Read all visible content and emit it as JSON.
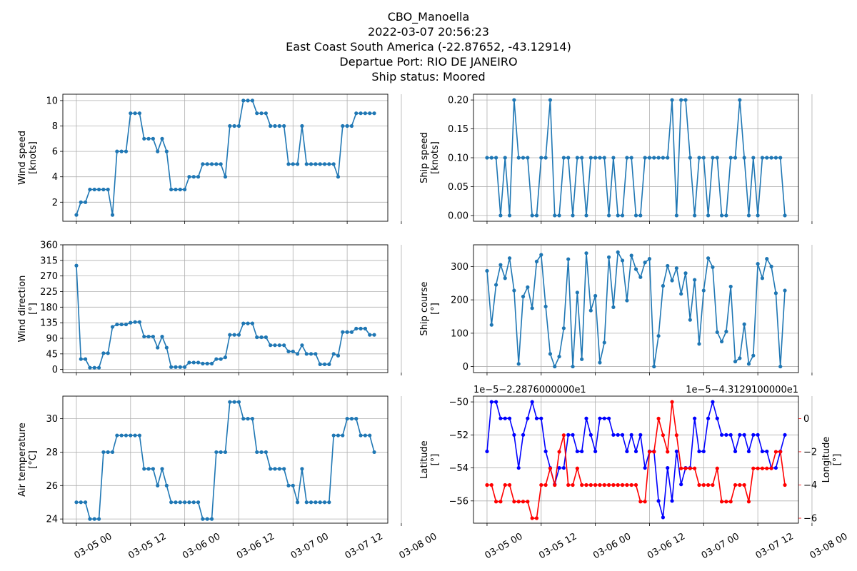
{
  "title": {
    "lines": [
      "CBO_Manoella",
      "2022-03-07 20:56:23",
      "East Coast South America (-22.87652, -43.12914)",
      "Departue Port: RIO DE JANEIRO",
      "Ship status: Moored"
    ]
  },
  "colors": {
    "series": "#1f77b4",
    "latitude": "#0000ff",
    "longitude": "#ff0000",
    "grid": "#b0b0b0"
  },
  "x_tick_labels": [
    "03-05 00",
    "03-05 12",
    "03-06 00",
    "03-06 12",
    "03-07 00",
    "03-07 12",
    "03-08 00"
  ],
  "chart_data": [
    {
      "type": "line",
      "ylabel": [
        "Wind speed",
        "[knots]"
      ],
      "grid": true,
      "xlim_hours": [
        -3,
        69
      ],
      "ylim": [
        0.5,
        10.5
      ],
      "yticks": [
        2,
        4,
        6,
        8,
        10
      ],
      "ytick_labels": [
        "2",
        "4",
        "6",
        "8",
        "10"
      ],
      "x_hours": [
        0,
        1,
        2,
        3,
        4,
        5,
        6,
        7,
        8,
        9,
        10,
        11,
        12,
        13,
        14,
        15,
        16,
        17,
        18,
        19,
        20,
        21,
        22,
        23,
        24,
        25,
        26,
        27,
        28,
        29,
        30,
        31,
        32,
        33,
        34,
        35,
        36,
        37,
        38,
        39,
        40,
        41,
        42,
        43,
        44,
        45,
        46,
        47,
        48,
        49,
        50,
        51,
        52,
        53,
        54,
        55,
        56,
        57,
        58,
        59,
        60,
        61,
        62,
        63,
        64,
        65,
        66
      ],
      "values": [
        1,
        2,
        2,
        3,
        3,
        3,
        3,
        3,
        1,
        6,
        6,
        6,
        9,
        9,
        9,
        7,
        7,
        7,
        6,
        7,
        6,
        3,
        3,
        3,
        3,
        4,
        4,
        4,
        5,
        5,
        5,
        5,
        5,
        4,
        8,
        8,
        8,
        10,
        10,
        10,
        9,
        9,
        9,
        8,
        8,
        8,
        8,
        5,
        5,
        5,
        8,
        5,
        5,
        5,
        5,
        5,
        5,
        5,
        4,
        8,
        8,
        8,
        9,
        9,
        9,
        9,
        9
      ]
    },
    {
      "type": "line",
      "ylabel": [
        "Ship speed",
        "[knots]"
      ],
      "grid": true,
      "xlim_hours": [
        -3,
        69
      ],
      "ylim": [
        -0.01,
        0.21
      ],
      "yticks": [
        0,
        0.05,
        0.1,
        0.15,
        0.2
      ],
      "ytick_labels": [
        "0.00",
        "0.05",
        "0.10",
        "0.15",
        "0.20"
      ],
      "x_hours": [
        0,
        1,
        2,
        3,
        4,
        5,
        6,
        7,
        8,
        9,
        10,
        11,
        12,
        13,
        14,
        15,
        16,
        17,
        18,
        19,
        20,
        21,
        22,
        23,
        24,
        25,
        26,
        27,
        28,
        29,
        30,
        31,
        32,
        33,
        34,
        35,
        36,
        37,
        38,
        39,
        40,
        41,
        42,
        43,
        44,
        45,
        46,
        47,
        48,
        49,
        50,
        51,
        52,
        53,
        54,
        55,
        56,
        57,
        58,
        59,
        60,
        61,
        62,
        63,
        64,
        65,
        66
      ],
      "values": [
        0.1,
        0.1,
        0.1,
        0,
        0.1,
        0,
        0.2,
        0.1,
        0.1,
        0.1,
        0,
        0,
        0.1,
        0.1,
        0.2,
        0,
        0,
        0.1,
        0.1,
        0,
        0.1,
        0.1,
        0,
        0.1,
        0.1,
        0.1,
        0.1,
        0,
        0.1,
        0,
        0,
        0.1,
        0.1,
        0,
        0,
        0.1,
        0.1,
        0.1,
        0.1,
        0.1,
        0.1,
        0.2,
        0,
        0.2,
        0.2,
        0.1,
        0,
        0.1,
        0.1,
        0,
        0.1,
        0.1,
        0,
        0,
        0.1,
        0.1,
        0.2,
        0.1,
        0,
        0.1,
        0,
        0.1,
        0.1,
        0.1,
        0.1,
        0.1,
        0
      ]
    },
    {
      "type": "line",
      "ylabel": [
        "Wind direction",
        "[°]"
      ],
      "grid": true,
      "xlim_hours": [
        -3,
        69
      ],
      "ylim": [
        -9,
        360
      ],
      "yticks": [
        0,
        45,
        90,
        135,
        180,
        225,
        270,
        315,
        360
      ],
      "ytick_labels": [
        "0",
        "45",
        "90",
        "135",
        "180",
        "225",
        "270",
        "315",
        "360"
      ],
      "x_hours": [
        0,
        1,
        2,
        3,
        4,
        5,
        6,
        7,
        8,
        9,
        10,
        11,
        12,
        13,
        14,
        15,
        16,
        17,
        18,
        19,
        20,
        21,
        22,
        23,
        24,
        25,
        26,
        27,
        28,
        29,
        30,
        31,
        32,
        33,
        34,
        35,
        36,
        37,
        38,
        39,
        40,
        41,
        42,
        43,
        44,
        45,
        46,
        47,
        48,
        49,
        50,
        51,
        52,
        53,
        54,
        55,
        56,
        57,
        58,
        59,
        60,
        61,
        62,
        63,
        64,
        65,
        66
      ],
      "values": [
        300,
        30,
        30,
        5,
        5,
        5,
        47,
        47,
        123,
        130,
        130,
        130,
        135,
        137,
        137,
        95,
        95,
        95,
        63,
        95,
        63,
        7,
        7,
        7,
        7,
        20,
        20,
        20,
        17,
        17,
        17,
        30,
        30,
        35,
        100,
        100,
        100,
        133,
        133,
        133,
        93,
        93,
        93,
        70,
        70,
        70,
        70,
        52,
        52,
        45,
        70,
        45,
        45,
        45,
        15,
        15,
        15,
        45,
        40,
        108,
        108,
        108,
        118,
        118,
        118,
        100,
        100
      ]
    },
    {
      "type": "line",
      "ylabel": [
        "Ship course",
        "[°]"
      ],
      "grid": true,
      "xlim_hours": [
        -3,
        69
      ],
      "ylim": [
        -18,
        365
      ],
      "yticks": [
        0,
        100,
        200,
        300
      ],
      "ytick_labels": [
        "0",
        "100",
        "200",
        "300"
      ],
      "x_hours": [
        0,
        1,
        2,
        3,
        4,
        5,
        6,
        7,
        8,
        9,
        10,
        11,
        12,
        13,
        14,
        15,
        16,
        17,
        18,
        19,
        20,
        21,
        22,
        23,
        24,
        25,
        26,
        27,
        28,
        29,
        30,
        31,
        32,
        33,
        34,
        35,
        36,
        37,
        38,
        39,
        40,
        41,
        42,
        43,
        44,
        45,
        46,
        47,
        48,
        49,
        50,
        51,
        52,
        53,
        54,
        55,
        56,
        57,
        58,
        59,
        60,
        61,
        62,
        63,
        64,
        65,
        66
      ],
      "values": [
        287,
        125,
        245,
        305,
        265,
        325,
        228,
        8,
        210,
        238,
        175,
        315,
        335,
        180,
        38,
        0,
        30,
        115,
        322,
        0,
        222,
        22,
        340,
        168,
        212,
        12,
        72,
        328,
        178,
        343,
        318,
        198,
        333,
        292,
        268,
        312,
        323,
        0,
        92,
        242,
        302,
        258,
        295,
        218,
        280,
        140,
        260,
        68,
        228,
        325,
        298,
        103,
        75,
        105,
        240,
        15,
        25,
        127,
        8,
        33,
        308,
        265,
        323,
        300,
        220,
        0,
        228
      ]
    },
    {
      "type": "line",
      "ylabel": [
        "Air temperature",
        "[°C]"
      ],
      "grid": true,
      "xlim_hours": [
        -3,
        69
      ],
      "ylim": [
        23.75,
        31.35
      ],
      "yticks": [
        24,
        26,
        28,
        30
      ],
      "ytick_labels": [
        "24",
        "26",
        "28",
        "30"
      ],
      "x_hours": [
        0,
        1,
        2,
        3,
        4,
        5,
        6,
        7,
        8,
        9,
        10,
        11,
        12,
        13,
        14,
        15,
        16,
        17,
        18,
        19,
        20,
        21,
        22,
        23,
        24,
        25,
        26,
        27,
        28,
        29,
        30,
        31,
        32,
        33,
        34,
        35,
        36,
        37,
        38,
        39,
        40,
        41,
        42,
        43,
        44,
        45,
        46,
        47,
        48,
        49,
        50,
        51,
        52,
        53,
        54,
        55,
        56,
        57,
        58,
        59,
        60,
        61,
        62,
        63,
        64,
        65,
        66
      ],
      "values": [
        25,
        25,
        25,
        24,
        24,
        24,
        28,
        28,
        28,
        29,
        29,
        29,
        29,
        29,
        29,
        27,
        27,
        27,
        26,
        27,
        26,
        25,
        25,
        25,
        25,
        25,
        25,
        25,
        24,
        24,
        24,
        28,
        28,
        28,
        31,
        31,
        31,
        30,
        30,
        30,
        28,
        28,
        28,
        27,
        27,
        27,
        27,
        26,
        26,
        25,
        27,
        25,
        25,
        25,
        25,
        25,
        25,
        29,
        29,
        29,
        30,
        30,
        30,
        29,
        29,
        29,
        28
      ]
    },
    {
      "type": "line",
      "dual_axis": true,
      "grid": true,
      "xlim_hours": [
        -3,
        69
      ],
      "left_axis": {
        "ylabel": [
          "Latitude",
          "[°]"
        ],
        "offset_text": "1e−5−2.2876000000e1",
        "ylim": [
          -57.35,
          -49.65
        ],
        "yticks": [
          -56,
          -54,
          -52,
          -50
        ],
        "ytick_labels": [
          "−56",
          "−54",
          "−52",
          "−50"
        ]
      },
      "right_axis": {
        "ylabel": [
          "Longitude",
          "[°]"
        ],
        "offset_text": "1e−5−4.3129100000e1",
        "ylim": [
          -6.3,
          1.35
        ],
        "yticks": [
          -6,
          -4,
          -2,
          0
        ],
        "ytick_labels": [
          "−6",
          "−4",
          "−2",
          "0"
        ]
      },
      "series": [
        {
          "name": "Latitude",
          "axis": "left",
          "x_hours": [
            0,
            1,
            2,
            3,
            4,
            5,
            6,
            7,
            8,
            9,
            10,
            11,
            12,
            13,
            14,
            15,
            16,
            17,
            18,
            19,
            20,
            21,
            22,
            23,
            24,
            25,
            26,
            27,
            28,
            29,
            30,
            31,
            32,
            33,
            34,
            35,
            36,
            37,
            38,
            39,
            40,
            41,
            42,
            43,
            44,
            45,
            46,
            47,
            48,
            49,
            50,
            51,
            52,
            53,
            54,
            55,
            56,
            57,
            58,
            59,
            60,
            61,
            62,
            63,
            64,
            65,
            66
          ],
          "values": [
            -53,
            -50,
            -50,
            -51,
            -51,
            -51,
            -52,
            -54,
            -52,
            -51,
            -50,
            -51,
            -51,
            -53,
            -54,
            -55,
            -54,
            -54,
            -52,
            -52,
            -53,
            -53,
            -51,
            -52,
            -53,
            -51,
            -51,
            -51,
            -52,
            -52,
            -52,
            -53,
            -52,
            -53,
            -52,
            -54,
            -53,
            -53,
            -56,
            -57,
            -54,
            -56,
            -53,
            -55,
            -54,
            -54,
            -51,
            -53,
            -53,
            -51,
            -50,
            -51,
            -52,
            -52,
            -52,
            -53,
            -52,
            -52,
            -53,
            -52,
            -52,
            -53,
            -53,
            -54,
            -54,
            -53,
            -52
          ]
        },
        {
          "name": "Longitude",
          "axis": "right",
          "x_hours": [
            0,
            1,
            2,
            3,
            4,
            5,
            6,
            7,
            8,
            9,
            10,
            11,
            12,
            13,
            14,
            15,
            16,
            17,
            18,
            19,
            20,
            21,
            22,
            23,
            24,
            25,
            26,
            27,
            28,
            29,
            30,
            31,
            32,
            33,
            34,
            35,
            36,
            37,
            38,
            39,
            40,
            41,
            42,
            43,
            44,
            45,
            46,
            47,
            48,
            49,
            50,
            51,
            52,
            53,
            54,
            55,
            56,
            57,
            58,
            59,
            60,
            61,
            62,
            63,
            64,
            65,
            66
          ],
          "values": [
            -4,
            -4,
            -5,
            -5,
            -4,
            -4,
            -5,
            -5,
            -5,
            -5,
            -6,
            -6,
            -4,
            -4,
            -3,
            -4,
            -2,
            -1,
            -4,
            -4,
            -3,
            -4,
            -4,
            -4,
            -4,
            -4,
            -4,
            -4,
            -4,
            -4,
            -4,
            -4,
            -4,
            -4,
            -5,
            -5,
            -2,
            -2,
            0,
            -1,
            -2,
            1,
            -1,
            -3,
            -3,
            -3,
            -3,
            -4,
            -4,
            -4,
            -4,
            -3,
            -5,
            -5,
            -5,
            -4,
            -4,
            -4,
            -5,
            -3,
            -3,
            -3,
            -3,
            -3,
            -2,
            -2,
            -4
          ]
        }
      ]
    }
  ]
}
